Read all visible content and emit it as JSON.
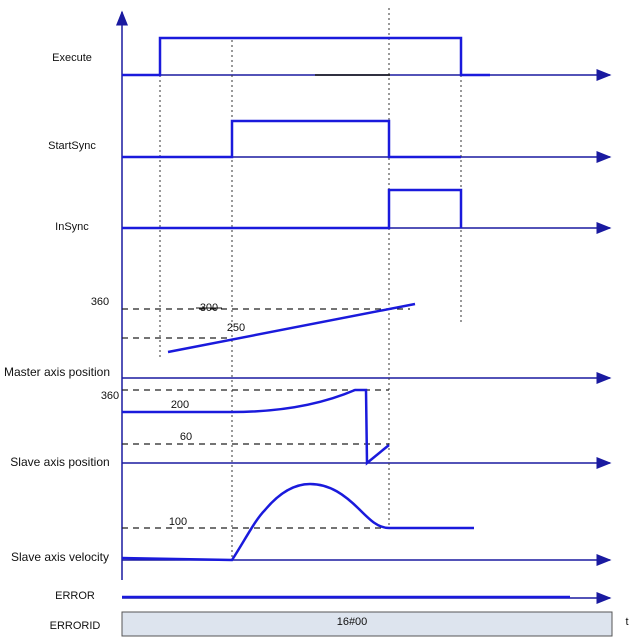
{
  "signals": [
    {
      "label": "Execute"
    },
    {
      "label": "StartSync"
    },
    {
      "label": "InSync"
    },
    {
      "label": "Master axis position",
      "levels": [
        "360",
        "300",
        "250"
      ]
    },
    {
      "label": "Slave axis position",
      "levels": [
        "360",
        "200",
        "60"
      ]
    },
    {
      "label": "Slave axis velocity",
      "levels": [
        "100"
      ]
    },
    {
      "label": "ERROR"
    },
    {
      "label": "ERRORID",
      "value": "16#00"
    }
  ],
  "time_axis": "t"
}
